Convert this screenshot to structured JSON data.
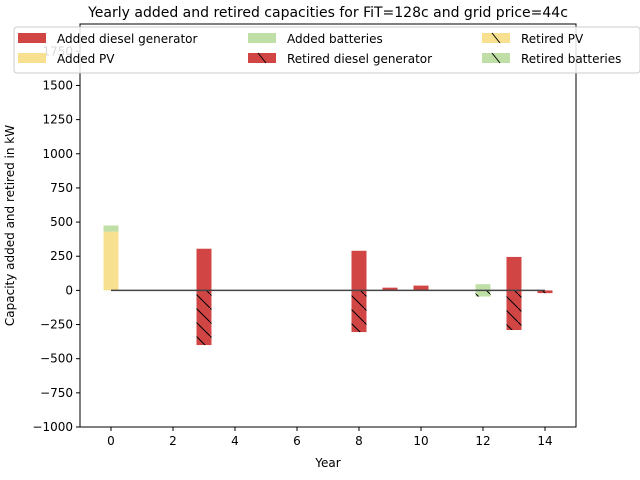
{
  "chart_data": {
    "type": "bar",
    "title": "Yearly added and retired capacities for FiT=128c and grid price=44c",
    "xlabel": "Year",
    "ylabel": "Capacity added and retired in kW",
    "xlim": [
      -1,
      15
    ],
    "ylim": [
      -1000,
      1950
    ],
    "xticks": [
      0,
      2,
      4,
      6,
      8,
      10,
      12,
      14
    ],
    "yticks": [
      -1000,
      -750,
      -500,
      -250,
      0,
      250,
      500,
      750,
      1000,
      1250,
      1500,
      1750
    ],
    "tick_labels_x": [
      "0",
      "2",
      "4",
      "6",
      "8",
      "10",
      "12",
      "14"
    ],
    "tick_labels_y": [
      "−1000",
      "−750",
      "−500",
      "−250",
      "0",
      "250",
      "500",
      "750",
      "1000",
      "1250",
      "1500",
      "1750"
    ],
    "legend_position": "top",
    "legend": [
      {
        "label": "Added diesel generator",
        "color": "#d14545",
        "hatch": false
      },
      {
        "label": "Added PV",
        "color": "#f7e08f",
        "hatch": false
      },
      {
        "label": "Added batteries",
        "color": "#c0dfa6",
        "hatch": false
      },
      {
        "label": "Retired diesel generator",
        "color": "#d14545",
        "hatch": true
      },
      {
        "label": "Retired PV",
        "color": "#f7e08f",
        "hatch": true
      },
      {
        "label": "Retired batteries",
        "color": "#c0dfa6",
        "hatch": true
      }
    ],
    "series": [
      {
        "name": "Added diesel generator",
        "x": [
          3,
          8,
          9,
          10,
          13
        ],
        "values": [
          305,
          290,
          20,
          35,
          245
        ]
      },
      {
        "name": "Added PV",
        "x": [
          0
        ],
        "values": [
          430
        ]
      },
      {
        "name": "Added batteries",
        "x": [
          0,
          12
        ],
        "values": [
          45,
          45
        ]
      },
      {
        "name": "Retired diesel generator",
        "x": [
          3,
          8,
          13,
          14
        ],
        "values": [
          -400,
          -305,
          -290,
          -20
        ]
      },
      {
        "name": "Retired PV",
        "x": [],
        "values": []
      },
      {
        "name": "Retired batteries",
        "x": [
          12
        ],
        "values": [
          -45
        ]
      }
    ],
    "net_line": {
      "x": [
        0,
        14
      ],
      "value": 0,
      "color": "#444444"
    }
  }
}
